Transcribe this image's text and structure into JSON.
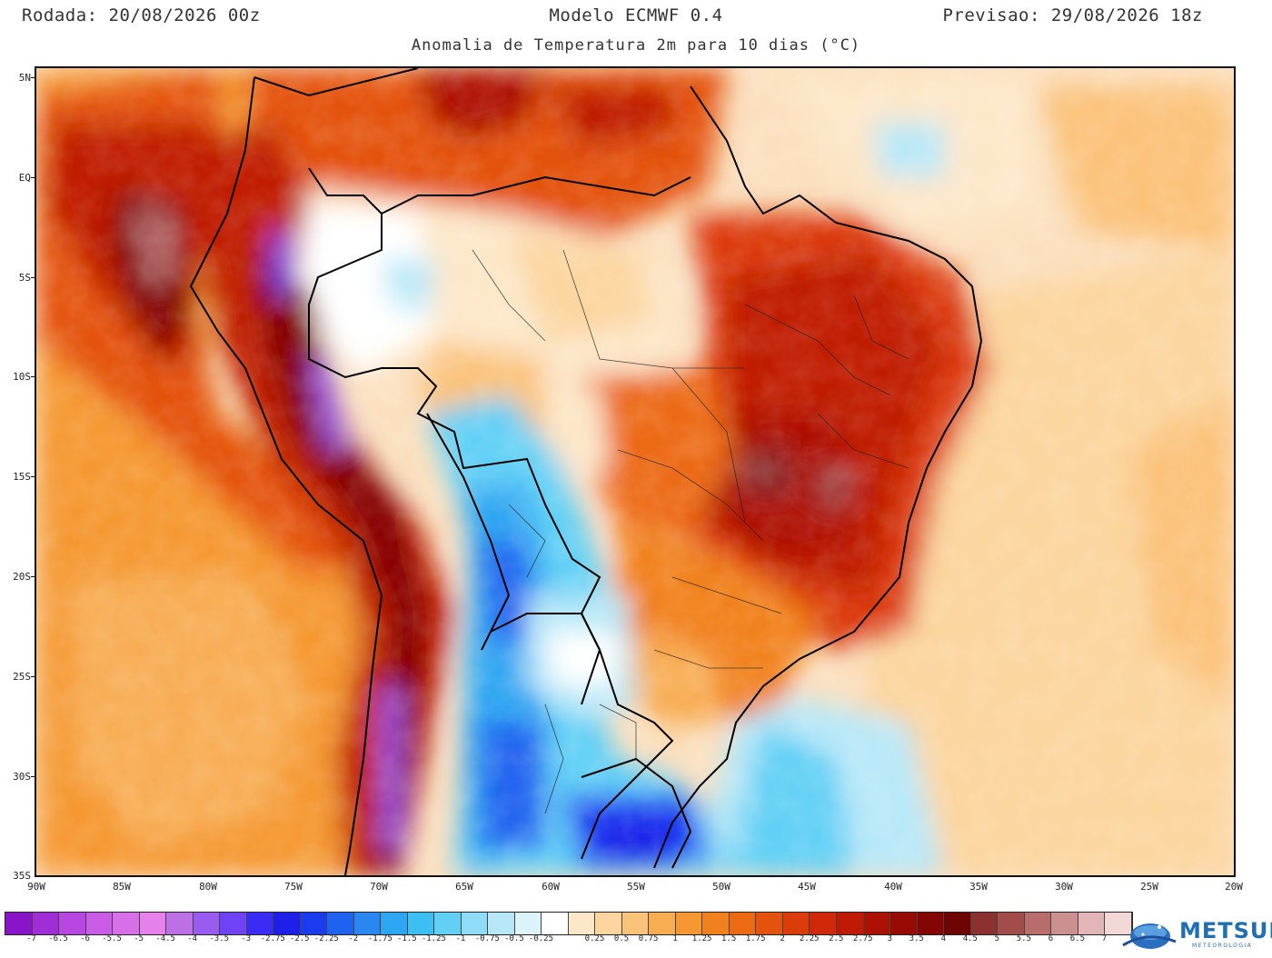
{
  "header": {
    "run": "Rodada: 20/08/2026 00z",
    "model": "Modelo ECMWF 0.4",
    "forecast": "Previsao: 29/08/2026 18z",
    "subtitle": "Anomalia de Temperatura 2m para 10 dias (°C)"
  },
  "axes": {
    "lat_labels": [
      "5N",
      "EQ",
      "5S",
      "10S",
      "15S",
      "20S",
      "25S",
      "30S",
      "35S"
    ],
    "lon_labels": [
      "90W",
      "85W",
      "80W",
      "75W",
      "70W",
      "65W",
      "60W",
      "55W",
      "50W",
      "45W",
      "40W",
      "35W",
      "30W",
      "25W",
      "20W"
    ]
  },
  "colorbar": {
    "colors": [
      "#8a14c8",
      "#a02dd6",
      "#b846e0",
      "#c95be6",
      "#d86fe8",
      "#e681ec",
      "#bd6fe6",
      "#9a5cf0",
      "#6f42f5",
      "#3a2cf5",
      "#1e20ea",
      "#1b3bf0",
      "#2062f0",
      "#2a86f0",
      "#2fa6f2",
      "#3cc0f4",
      "#62d0f6",
      "#8edcf7",
      "#b8e8f8",
      "#dcf3fb",
      "#ffffff",
      "#fde7c9",
      "#fcd59f",
      "#fbc27a",
      "#f8ad55",
      "#f59833",
      "#f1811e",
      "#ec6a14",
      "#e4530e",
      "#dc3b0a",
      "#d02808",
      "#c01a06",
      "#ad1004",
      "#980a04",
      "#830604",
      "#6e0404",
      "#8c3030",
      "#a24c4c",
      "#b86c6c",
      "#cd9090",
      "#e2b6b6",
      "#f3d8d8"
    ],
    "labels": [
      "-7",
      "-6.5",
      "-6",
      "-5.5",
      "-5",
      "-4.5",
      "-4",
      "-3.5",
      "-3",
      "-2.75",
      "-2.5",
      "-2.25",
      "-2",
      "-1.75",
      "-1.5",
      "-1.25",
      "-1",
      "-0.75",
      "-0.5",
      "-0.25",
      "0.25",
      "0.5",
      "0.75",
      "1",
      "1.25",
      "1.5",
      "1.75",
      "2",
      "2.25",
      "2.5",
      "2.75",
      "3",
      "3.5",
      "4",
      "4.5",
      "5",
      "5.5",
      "6",
      "6.5",
      "7"
    ]
  },
  "brand": {
    "name": "METSUL",
    "tagline": "METEOROLOGIA"
  }
}
